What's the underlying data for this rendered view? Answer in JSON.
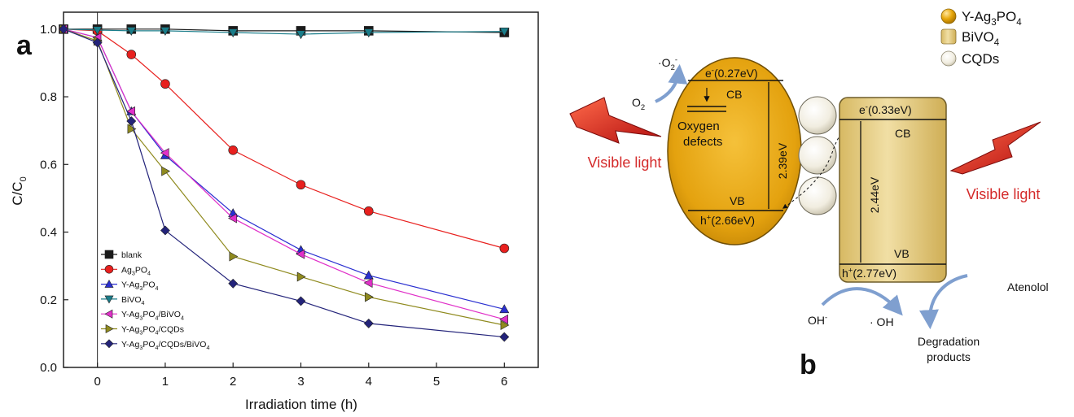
{
  "panel_a": {
    "label": "a",
    "chart_data": {
      "type": "line",
      "xlabel": "Irradiation time (h)",
      "ylabel_main": "C/C",
      "ylabel_sub": "0",
      "xlim": [
        -0.5,
        6.5
      ],
      "ylim": [
        0.0,
        1.05
      ],
      "x_ticks": [
        "0",
        "1",
        "2",
        "3",
        "4",
        "5",
        "6"
      ],
      "y_ticks": [
        "0.0",
        "0.2",
        "0.4",
        "0.6",
        "0.8",
        "1.0"
      ],
      "grid": false,
      "legend_position": "bottom-left",
      "series": [
        {
          "name": "blank",
          "legend": [
            [
              "blank",
              ""
            ]
          ],
          "color": "#1a1a1a",
          "marker": "square",
          "x": [
            -0.5,
            0,
            0.5,
            1,
            2,
            3,
            4,
            6
          ],
          "y": [
            1.0,
            1.0,
            1.0,
            1.0,
            0.995,
            0.995,
            0.995,
            0.99
          ]
        },
        {
          "name": "Ag3PO4",
          "legend": [
            [
              "Ag",
              ""
            ],
            [
              "3",
              "sub"
            ],
            [
              "PO",
              ""
            ],
            [
              "4",
              "sub"
            ]
          ],
          "color": "#e8201e",
          "marker": "circle",
          "x": [
            -0.5,
            0,
            0.5,
            1,
            2,
            3,
            4,
            6
          ],
          "y": [
            1.0,
            0.995,
            0.925,
            0.838,
            0.642,
            0.54,
            0.462,
            0.352
          ]
        },
        {
          "name": "Y-Ag3PO4",
          "legend": [
            [
              "Y-Ag",
              ""
            ],
            [
              "3",
              "sub"
            ],
            [
              "PO",
              ""
            ],
            [
              "4",
              "sub"
            ]
          ],
          "color": "#2a2fd0",
          "marker": "triangle-up",
          "x": [
            -0.5,
            0,
            0.5,
            1,
            2,
            3,
            4,
            6
          ],
          "y": [
            1.0,
            0.975,
            0.757,
            0.627,
            0.456,
            0.347,
            0.272,
            0.172
          ]
        },
        {
          "name": "BiVO4",
          "legend": [
            [
              "BiVO",
              ""
            ],
            [
              "4",
              "sub"
            ]
          ],
          "color": "#1a7d8a",
          "marker": "triangle-down",
          "x": [
            -0.5,
            0,
            0.5,
            1,
            2,
            3,
            4,
            6
          ],
          "y": [
            1.0,
            0.997,
            0.995,
            0.995,
            0.99,
            0.985,
            0.99,
            0.993
          ]
        },
        {
          "name": "Y-Ag3PO4/BiVO4",
          "legend": [
            [
              "Y-Ag",
              ""
            ],
            [
              "3",
              "sub"
            ],
            [
              "PO",
              ""
            ],
            [
              "4",
              "sub"
            ],
            [
              "/BiVO",
              ""
            ],
            [
              "4",
              "sub"
            ]
          ],
          "color": "#e030c8",
          "marker": "triangle-left",
          "x": [
            -0.5,
            0,
            0.5,
            1,
            2,
            3,
            4,
            6
          ],
          "y": [
            1.0,
            0.975,
            0.757,
            0.634,
            0.441,
            0.335,
            0.25,
            0.142
          ]
        },
        {
          "name": "Y-Ag3PO4/CQDs",
          "legend": [
            [
              "Y-Ag",
              ""
            ],
            [
              "3",
              "sub"
            ],
            [
              "PO",
              ""
            ],
            [
              "4",
              "sub"
            ],
            [
              "/CQDs",
              ""
            ]
          ],
          "color": "#8f8a1e",
          "marker": "triangle-right",
          "x": [
            -0.5,
            0,
            0.5,
            1,
            2,
            3,
            4,
            6
          ],
          "y": [
            1.0,
            0.965,
            0.705,
            0.58,
            0.328,
            0.268,
            0.208,
            0.125
          ]
        },
        {
          "name": "Y-Ag3PO4/CQDs/BiVO4",
          "legend": [
            [
              "Y-Ag",
              ""
            ],
            [
              "3",
              "sub"
            ],
            [
              "PO",
              ""
            ],
            [
              "4",
              "sub"
            ],
            [
              "/CQDs/BiVO",
              ""
            ],
            [
              "4",
              "sub"
            ]
          ],
          "color": "#23237a",
          "marker": "diamond",
          "x": [
            -0.5,
            0,
            0.5,
            1,
            2,
            3,
            4,
            6
          ],
          "y": [
            1.0,
            0.96,
            0.728,
            0.405,
            0.248,
            0.196,
            0.13,
            0.09
          ]
        }
      ]
    }
  },
  "panel_b": {
    "label": "b",
    "legend": [
      {
        "name": "Y-Ag3PO4",
        "parts": [
          [
            "Y-Ag",
            ""
          ],
          [
            "3",
            "sub"
          ],
          [
            "PO",
            ""
          ],
          [
            "4",
            "sub"
          ]
        ],
        "color": "#e8a80c",
        "icon": "sphere"
      },
      {
        "name": "BiVO4",
        "parts": [
          [
            "BiVO",
            ""
          ],
          [
            "4",
            "sub"
          ]
        ],
        "color": "#e0c779",
        "icon": "box"
      },
      {
        "name": "CQDs",
        "parts": [
          [
            "CQDs",
            ""
          ]
        ],
        "color": "#f2eee0",
        "icon": "sphere"
      }
    ],
    "visible_light_left": "Visible light",
    "visible_light_right": "Visible light",
    "y_ag3po4": {
      "cb_level": [
        [
          "e",
          ""
        ],
        [
          "-",
          "sup"
        ],
        [
          "(0.27eV)",
          ""
        ]
      ],
      "cb_label": "CB",
      "vb_label": "VB",
      "vb_level": [
        [
          "h",
          ""
        ],
        [
          "+",
          "sup"
        ],
        [
          "(2.66eV)",
          ""
        ]
      ],
      "gap": "2.39eV",
      "defects_line1": "Oxygen",
      "defects_line2": "defects"
    },
    "bivo4": {
      "cb_level": [
        [
          "e",
          ""
        ],
        [
          "-",
          "sup"
        ],
        [
          "(0.33eV)",
          ""
        ]
      ],
      "cb_label": "CB",
      "vb_label": "VB",
      "vb_level": [
        [
          "h",
          ""
        ],
        [
          "+",
          "sup"
        ],
        [
          "(2.77eV)",
          ""
        ]
      ],
      "gap": "2.44eV"
    },
    "o2": [
      [
        "O",
        ""
      ],
      [
        "2",
        "sub"
      ]
    ],
    "superoxide": [
      [
        "·O",
        ""
      ],
      [
        "2",
        "sub"
      ],
      [
        "-",
        "sup"
      ]
    ],
    "hydroxide": [
      [
        "OH",
        ""
      ],
      [
        "-",
        "sup"
      ]
    ],
    "hydroxyl": "· OH",
    "atenolol": "Atenolol",
    "products_line1": "Degradation",
    "products_line2": "products",
    "colors": {
      "y_ag3po4": "#e8a80c",
      "bivo4": "#e0c779",
      "cqd": "#f2eee0",
      "visible_light": "#d42a2a",
      "arrow": "#7f9fcf"
    }
  }
}
